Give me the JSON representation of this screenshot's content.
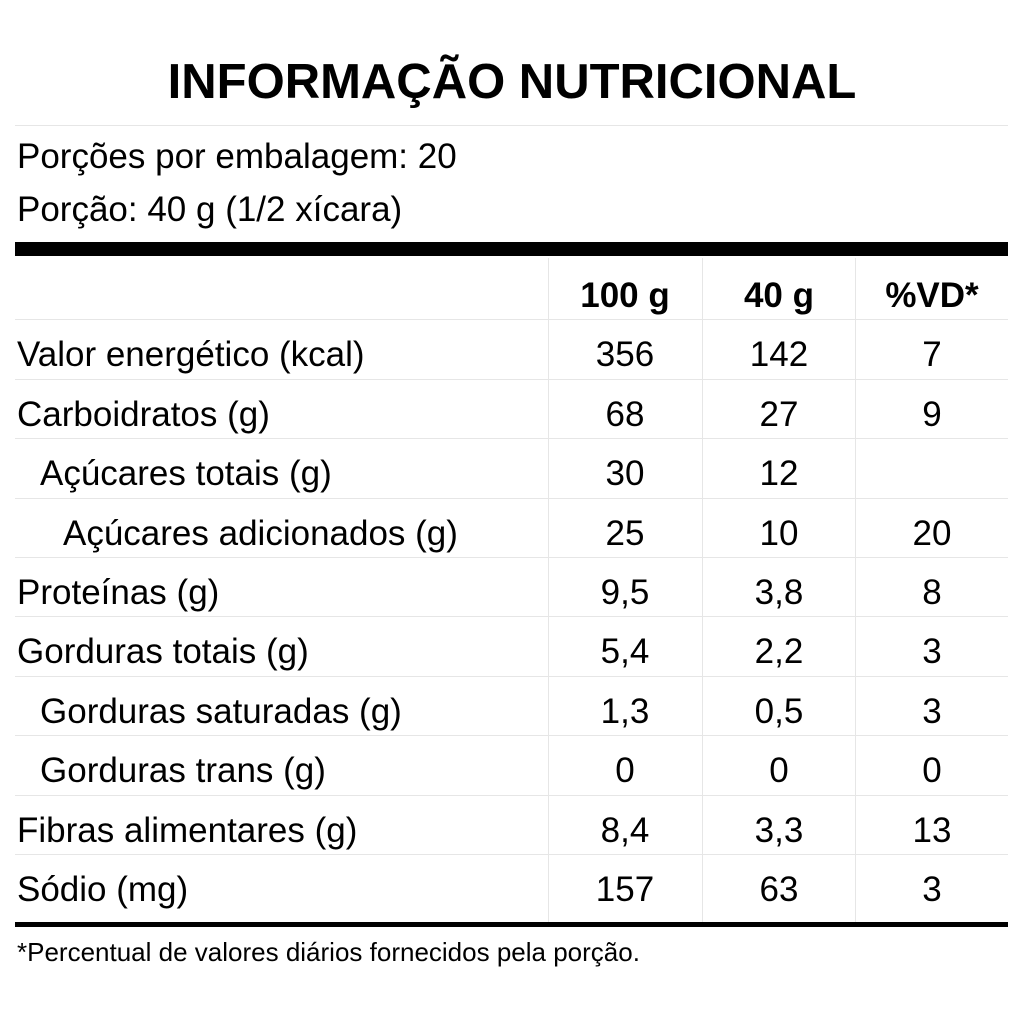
{
  "header": {
    "title": "INFORMAÇÃO NUTRICIONAL",
    "servings": "Porções por embalagem: 20",
    "portion": "Porção: 40 g (1/2 xícara)"
  },
  "table": {
    "columns": [
      "100 g",
      "40 g",
      "%VD*"
    ],
    "rows": [
      [
        "Valor energético (kcal)",
        "356",
        "142",
        "7"
      ],
      [
        "Carboidratos (g)",
        "68",
        "27",
        "9"
      ],
      [
        "Açúcares totais (g)",
        "30",
        "12"
      ],
      [
        "Açúcares adicionados (g)",
        "25",
        "10",
        "20"
      ],
      [
        "Proteínas (g)",
        "9,5",
        "3,8",
        "8"
      ],
      [
        "Gorduras totais (g)",
        "5,4",
        "2,2",
        "3"
      ],
      [
        "Gorduras saturadas (g)",
        "1,3",
        "0,5",
        "3"
      ],
      [
        "Gorduras trans (g)",
        "0",
        "0",
        "0"
      ],
      [
        "Fibras alimentares (g)",
        "8,4",
        "3,3",
        "13"
      ],
      [
        "Sódio (mg)",
        "157",
        "63",
        "3"
      ]
    ]
  },
  "footnote": "*Percentual de valores diários fornecidos pela porção."
}
